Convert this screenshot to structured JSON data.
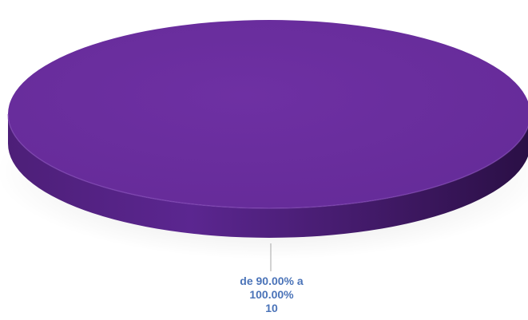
{
  "chart_data": {
    "type": "pie",
    "style": "3d",
    "title": "",
    "slices": [
      {
        "label_line1": "de 90.00% a",
        "label_line2": "100.00%",
        "value": 10,
        "value_text": "10",
        "color": "#6a2d9e"
      }
    ],
    "legend": "none",
    "data_label_color": "#4a73b8"
  }
}
